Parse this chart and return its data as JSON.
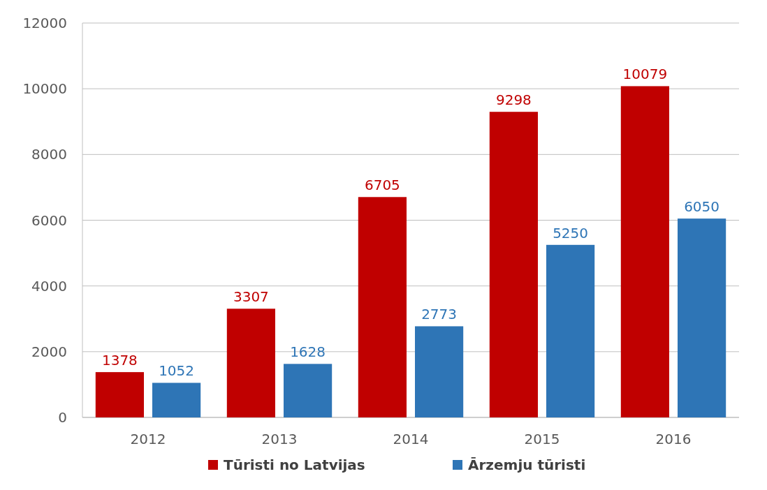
{
  "chart_data": {
    "type": "bar",
    "categories": [
      "2012",
      "2013",
      "2014",
      "2015",
      "2016"
    ],
    "series": [
      {
        "name": "Tūristi no Latvijas",
        "color": "#c00000",
        "values": [
          1378,
          3307,
          6705,
          9298,
          10079
        ]
      },
      {
        "name": "Ārzemju tūristi",
        "color": "#2e75b6",
        "values": [
          1052,
          1628,
          2773,
          5250,
          6050
        ]
      }
    ],
    "ylim": [
      0,
      12000
    ],
    "yticks": [
      0,
      2000,
      4000,
      6000,
      8000,
      10000,
      12000
    ],
    "grid": "y",
    "legend": "bottom",
    "data_labels": true
  }
}
